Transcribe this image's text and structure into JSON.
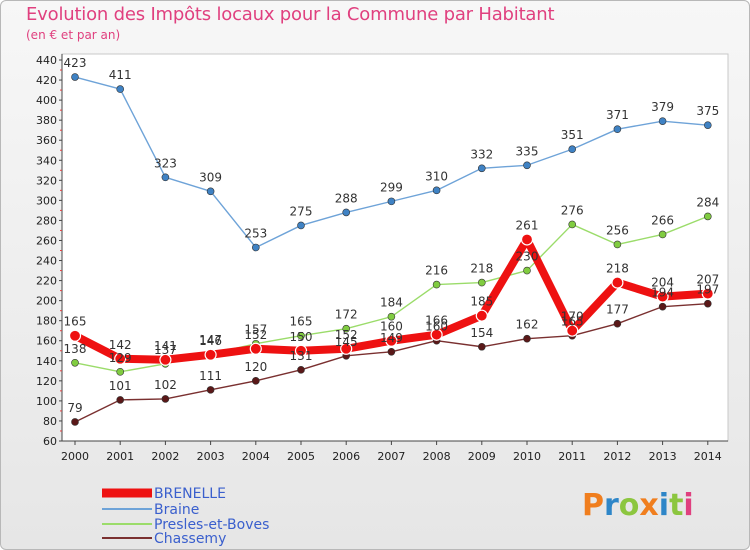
{
  "header": {
    "title": "Evolution des Impôts locaux pour la Commune par Habitant",
    "subtitle": "(en € et par an)"
  },
  "logo": {
    "text": "Proxiti",
    "colors": [
      "#f07e1e",
      "#2e86c8",
      "#8cc63f",
      "#f07e1e",
      "#2e86c8",
      "#8cc63f",
      "#e0407f"
    ]
  },
  "chart_data": {
    "type": "line",
    "title": "Evolution des Impôts locaux pour la Commune par Habitant",
    "subtitle": "(en € et par an)",
    "x": [
      2000,
      2001,
      2002,
      2003,
      2004,
      2005,
      2006,
      2007,
      2008,
      2009,
      2010,
      2011,
      2012,
      2013,
      2014
    ],
    "ylim": [
      60,
      440
    ],
    "yticks": [
      60,
      80,
      100,
      120,
      140,
      160,
      180,
      200,
      220,
      240,
      260,
      280,
      300,
      320,
      340,
      360,
      380,
      400,
      420,
      440
    ],
    "grid": false,
    "legend": "bottom-left",
    "series": [
      {
        "name": "BRENELLE",
        "color": "#ee1111",
        "marker_color": "#ee1111",
        "values": [
          165,
          142,
          141,
          146,
          152,
          150,
          152,
          160,
          166,
          185,
          261,
          170,
          218,
          204,
          207
        ],
        "labels": [
          "165",
          "142",
          "141",
          "146",
          "152",
          "150",
          "152",
          "160",
          "166",
          "185",
          "261",
          "170",
          "218",
          "204",
          "207"
        ]
      },
      {
        "name": "Braine",
        "color": "#6ea3d8",
        "marker_color": "#3f82c4",
        "values": [
          423,
          411,
          323,
          309,
          253,
          275,
          288,
          299,
          310,
          332,
          335,
          351,
          371,
          379,
          375
        ],
        "labels": [
          "423",
          "411",
          "323",
          "309",
          "253",
          "275",
          "288",
          "299",
          "310",
          "332",
          "335",
          "351",
          "371",
          "379",
          "375"
        ]
      },
      {
        "name": "Presles-et-Boves",
        "color": "#9bdc6a",
        "marker_color": "#80cc40",
        "values": [
          138,
          129,
          137,
          147,
          157,
          165,
          172,
          184,
          216,
          218,
          230,
          276,
          256,
          266,
          284
        ],
        "labels": [
          "138",
          "129",
          "137",
          "147",
          "157",
          "165",
          "172",
          "184",
          "216",
          "218",
          "230",
          "276",
          "256",
          "266",
          "284"
        ]
      },
      {
        "name": "Chassemy",
        "color": "#7a3030",
        "marker_color": "#5a1818",
        "values": [
          79,
          101,
          102,
          111,
          120,
          131,
          145,
          149,
          160,
          154,
          162,
          165,
          177,
          194,
          197
        ],
        "labels": [
          "79",
          "101",
          "102",
          "111",
          "120",
          "131",
          "145",
          "149",
          "160",
          "154",
          "162",
          "165",
          "177",
          "194",
          "197"
        ]
      }
    ]
  }
}
